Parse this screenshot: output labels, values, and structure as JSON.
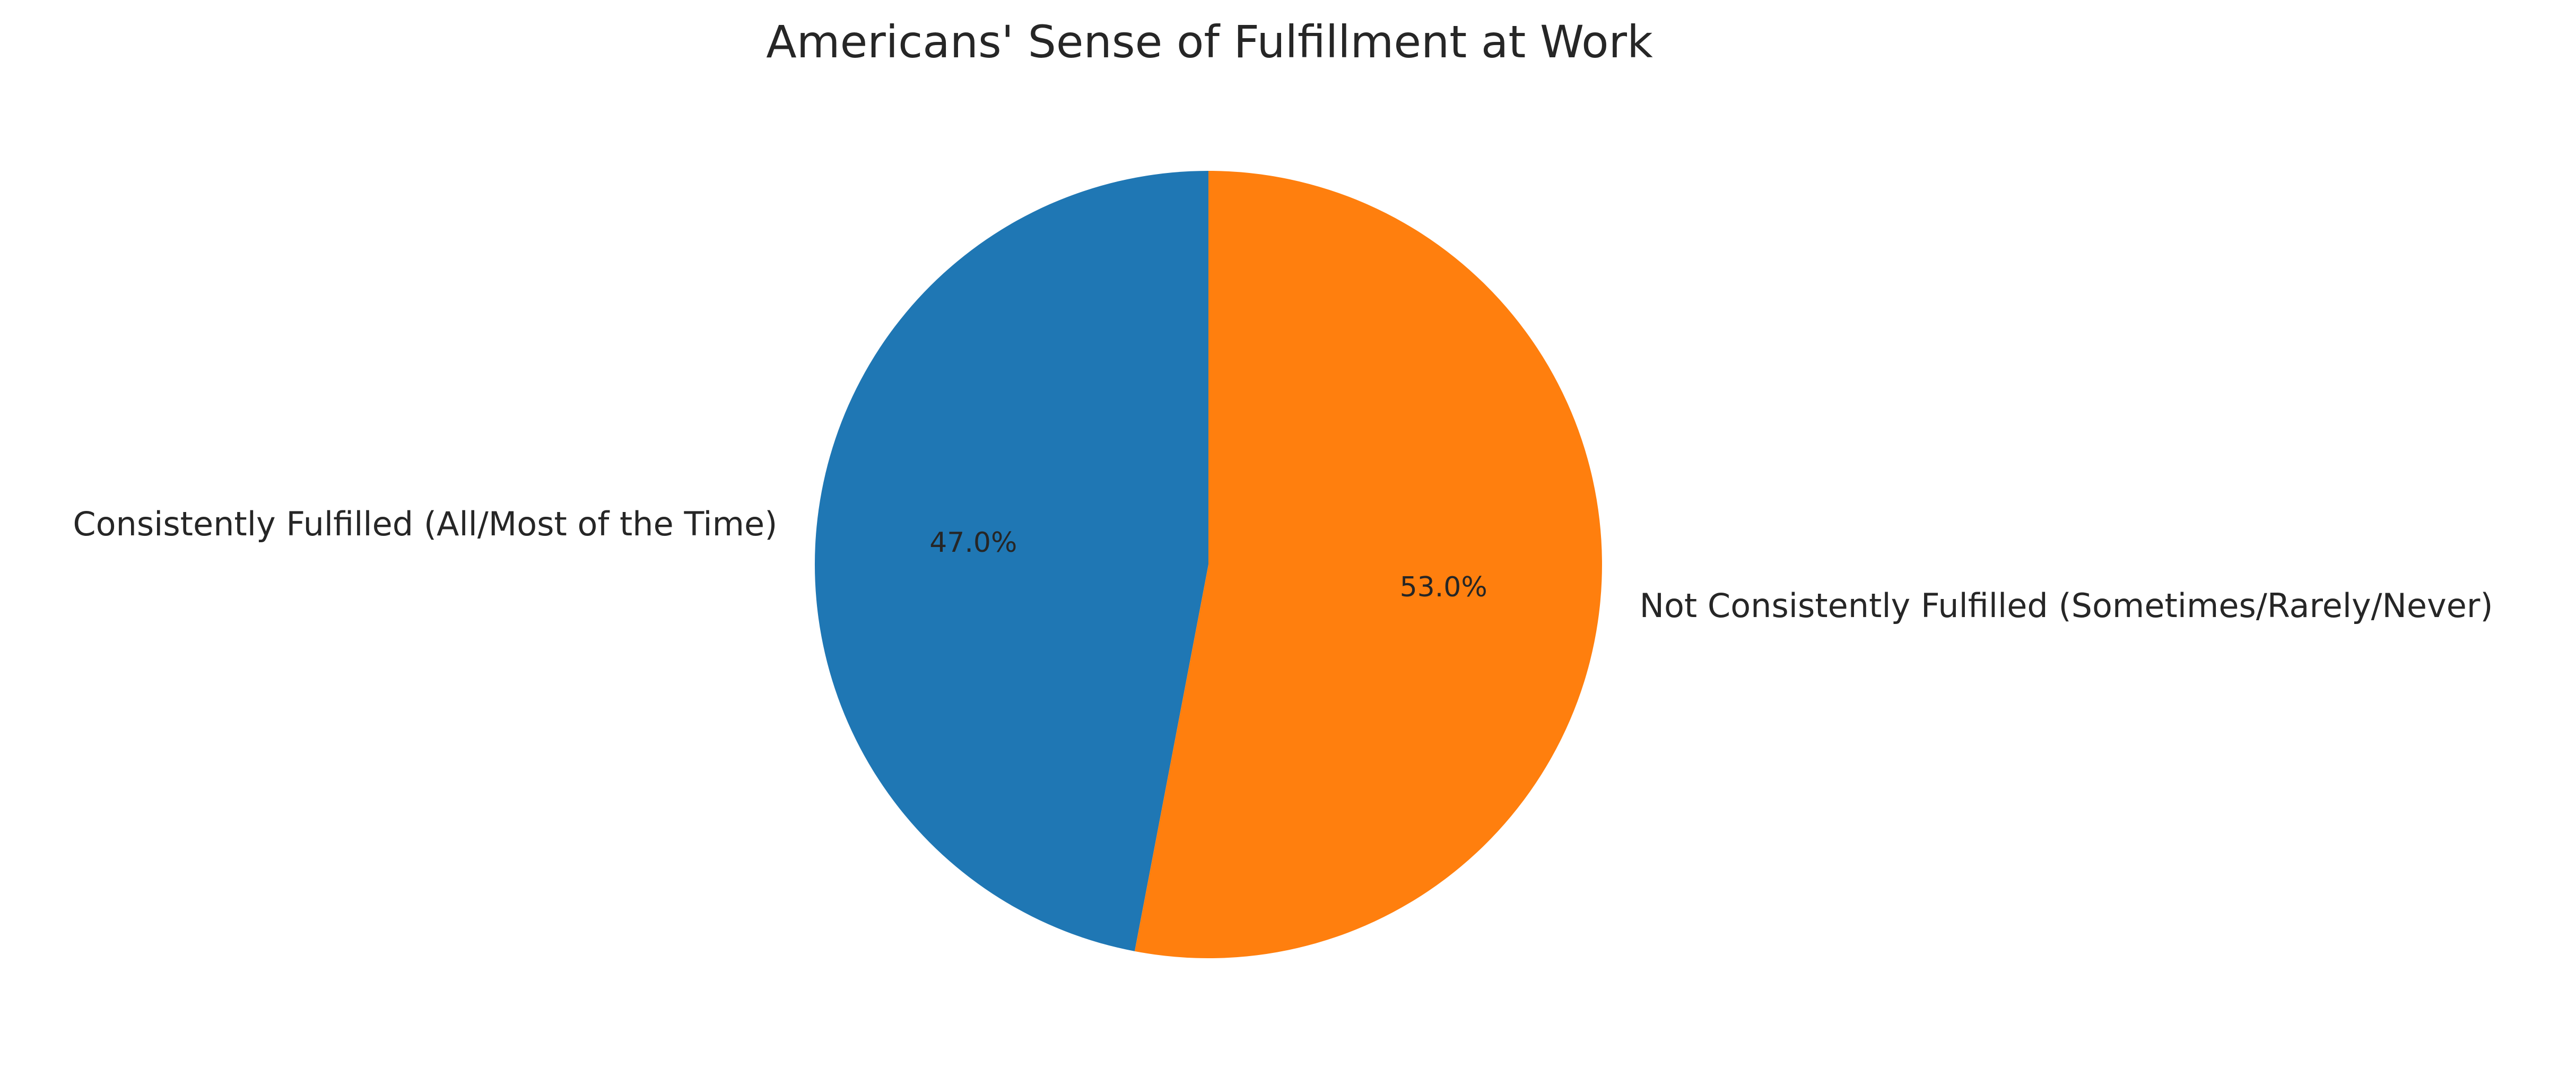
{
  "chart_data": {
    "type": "pie",
    "title": "Americans' Sense of Fulfillment at Work",
    "categories": [
      "Consistently Fulfilled (All/Most of the Time)",
      "Not Consistently Fulfilled (Sometimes/Rarely/Never)"
    ],
    "values": [
      47.0,
      53.0
    ],
    "percent_labels": [
      "47.0%",
      "53.0%"
    ],
    "colors": [
      "#1f77b4",
      "#ff7f0e"
    ],
    "start_angle_deg": 90,
    "direction": "counterclockwise",
    "legend": "none"
  }
}
